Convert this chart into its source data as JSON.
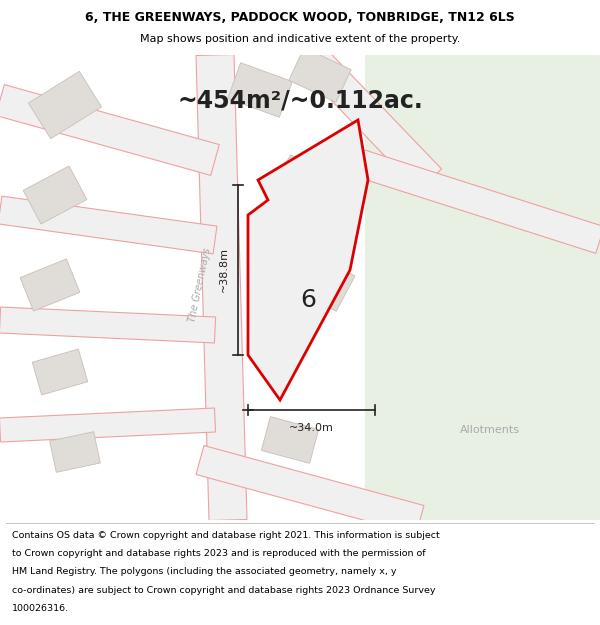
{
  "title": "6, THE GREENWAYS, PADDOCK WOOD, TONBRIDGE, TN12 6LS",
  "subtitle": "Map shows position and indicative extent of the property.",
  "area_text": "~454m²/~0.112ac.",
  "width_label": "~34.0m",
  "height_label": "~38.8m",
  "street_label": "The Greenways",
  "allotments_label": "Allotments",
  "number_label": "6",
  "footer_lines": [
    "Contains OS data © Crown copyright and database right 2021. This information is subject",
    "to Crown copyright and database rights 2023 and is reproduced with the permission of",
    "HM Land Registry. The polygons (including the associated geometry, namely x, y",
    "co-ordinates) are subject to Crown copyright and database rights 2023 Ordnance Survey",
    "100026316."
  ],
  "map_bg": "#f0f0f0",
  "green_area_color": "#e8f0e4",
  "road_line_color": "#f0a0a0",
  "plot_stroke": "#dd0000",
  "building_fill": "#e0dcd8",
  "building_stroke": "#c8c0b8",
  "dim_line_color": "#222222",
  "text_color": "#222222",
  "street_label_color": "#aaaaaa"
}
